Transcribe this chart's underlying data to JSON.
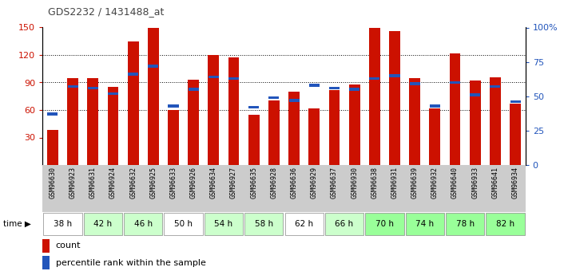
{
  "title": "GDS2232 / 1431488_at",
  "samples": [
    "GSM96630",
    "GSM96923",
    "GSM96631",
    "GSM96924",
    "GSM96632",
    "GSM96925",
    "GSM96633",
    "GSM96926",
    "GSM96634",
    "GSM96927",
    "GSM96635",
    "GSM96928",
    "GSM96636",
    "GSM96929",
    "GSM96637",
    "GSM96930",
    "GSM96638",
    "GSM96931",
    "GSM96639",
    "GSM96932",
    "GSM96640",
    "GSM96933",
    "GSM96641",
    "GSM96934"
  ],
  "time_groups": [
    {
      "label": "38 h",
      "color": "#ffffff"
    },
    {
      "label": "42 h",
      "color": "#ccffcc"
    },
    {
      "label": "46 h",
      "color": "#ccffcc"
    },
    {
      "label": "50 h",
      "color": "#ffffff"
    },
    {
      "label": "54 h",
      "color": "#ccffcc"
    },
    {
      "label": "58 h",
      "color": "#ccffcc"
    },
    {
      "label": "62 h",
      "color": "#ffffff"
    },
    {
      "label": "66 h",
      "color": "#ccffcc"
    },
    {
      "label": "70 h",
      "color": "#99ff99"
    },
    {
      "label": "74 h",
      "color": "#99ff99"
    },
    {
      "label": "78 h",
      "color": "#99ff99"
    },
    {
      "label": "82 h",
      "color": "#99ff99"
    }
  ],
  "counts": [
    38,
    95,
    95,
    85,
    135,
    150,
    60,
    93,
    120,
    117,
    55,
    70,
    80,
    62,
    82,
    88,
    150,
    146,
    95,
    62,
    122,
    92,
    96,
    67
  ],
  "percentile_ranks": [
    37,
    57,
    56,
    52,
    66,
    72,
    43,
    55,
    64,
    63,
    42,
    49,
    47,
    58,
    56,
    55,
    63,
    65,
    59,
    43,
    60,
    51,
    57,
    46
  ],
  "bar_color": "#cc1100",
  "marker_color": "#2255bb",
  "ylim_left": [
    0,
    150
  ],
  "ylim_right": [
    0,
    100
  ],
  "yticks_left": [
    30,
    60,
    90,
    120,
    150
  ],
  "yticks_right": [
    0,
    25,
    50,
    75,
    100
  ],
  "bar_width": 0.55,
  "tick_color_left": "#cc1100",
  "tick_color_right": "#2255bb",
  "title_color": "#444444",
  "sample_bg_colors": [
    "#cccccc",
    "#cccccc",
    "#cccccc",
    "#cccccc",
    "#cccccc",
    "#cccccc",
    "#cccccc",
    "#cccccc",
    "#cccccc",
    "#cccccc",
    "#cccccc",
    "#cccccc",
    "#cccccc",
    "#cccccc",
    "#cccccc",
    "#cccccc",
    "#cccccc",
    "#cccccc",
    "#cccccc",
    "#cccccc",
    "#cccccc",
    "#cccccc",
    "#cccccc",
    "#cccccc"
  ]
}
